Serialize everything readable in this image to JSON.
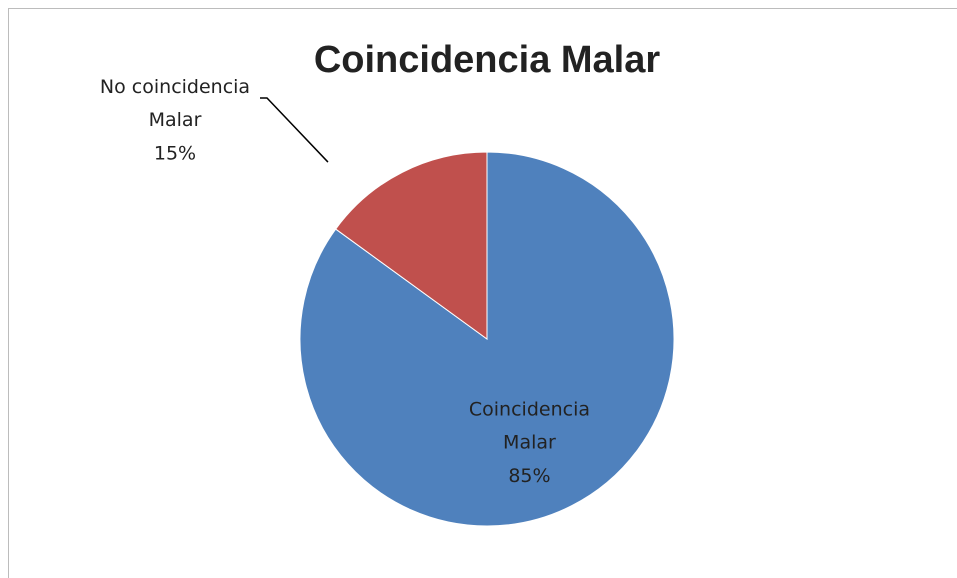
{
  "chart_data": {
    "type": "pie",
    "title": "Coincidencia Malar",
    "categories": [
      "Coincidencia Malar",
      "No coincidencia Malar"
    ],
    "values": [
      85,
      15
    ],
    "value_labels": [
      "85%",
      "15%"
    ],
    "colors": [
      "#4f81bd",
      "#c0504d"
    ]
  }
}
